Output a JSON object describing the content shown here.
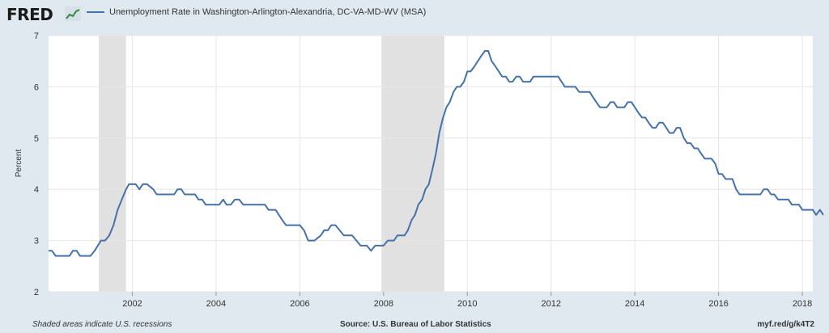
{
  "header": {
    "logo_text": "FRED",
    "logo_icon": "trend-line-icon",
    "legend_label": "Unemployment Rate in Washington-Arlington-Alexandria, DC-VA-MD-WV (MSA)"
  },
  "footer": {
    "note": "Shaded areas indicate U.S. recessions",
    "source": "Source: U.S. Bureau of Labor Statistics",
    "link": "myf.red/g/k4T2"
  },
  "colors": {
    "line": "#4572a7",
    "recession": "#e1e1e1",
    "grid": "#e6e6e6",
    "background": "#e1e9f0",
    "plot": "#ffffff"
  },
  "chart_data": {
    "type": "line",
    "title": "",
    "xlabel": "",
    "ylabel": "Percent",
    "ylim": [
      2,
      7
    ],
    "xlim": [
      2000.0,
      2018.25
    ],
    "grid": true,
    "legend_position": "top-left",
    "yticks": [
      2,
      3,
      4,
      5,
      6,
      7
    ],
    "xticks": [
      2002,
      2004,
      2006,
      2008,
      2010,
      2012,
      2014,
      2016,
      2018
    ],
    "recessions": [
      [
        2001.2,
        2001.85
      ],
      [
        2007.95,
        2009.45
      ]
    ],
    "series": [
      {
        "name": "Unemployment Rate in Washington-Arlington-Alexandria, DC-VA-MD-WV (MSA)",
        "points": [
          [
            2000.0,
            2.8
          ],
          [
            2000.08,
            2.8
          ],
          [
            2000.17,
            2.7
          ],
          [
            2000.5,
            2.7
          ],
          [
            2000.58,
            2.8
          ],
          [
            2000.67,
            2.8
          ],
          [
            2000.75,
            2.7
          ],
          [
            2001.0,
            2.7
          ],
          [
            2001.1,
            2.8
          ],
          [
            2001.25,
            3.0
          ],
          [
            2001.35,
            3.0
          ],
          [
            2001.45,
            3.1
          ],
          [
            2001.55,
            3.3
          ],
          [
            2001.65,
            3.6
          ],
          [
            2001.75,
            3.8
          ],
          [
            2001.85,
            4.0
          ],
          [
            2001.92,
            4.1
          ],
          [
            2002.08,
            4.1
          ],
          [
            2002.17,
            4.0
          ],
          [
            2002.25,
            4.1
          ],
          [
            2002.35,
            4.1
          ],
          [
            2002.5,
            4.0
          ],
          [
            2002.58,
            3.9
          ],
          [
            2003.0,
            3.9
          ],
          [
            2003.08,
            4.0
          ],
          [
            2003.17,
            4.0
          ],
          [
            2003.25,
            3.9
          ],
          [
            2003.5,
            3.9
          ],
          [
            2003.58,
            3.8
          ],
          [
            2003.67,
            3.8
          ],
          [
            2003.75,
            3.7
          ],
          [
            2004.08,
            3.7
          ],
          [
            2004.17,
            3.8
          ],
          [
            2004.25,
            3.7
          ],
          [
            2004.35,
            3.7
          ],
          [
            2004.45,
            3.8
          ],
          [
            2004.55,
            3.8
          ],
          [
            2004.65,
            3.7
          ],
          [
            2005.17,
            3.7
          ],
          [
            2005.25,
            3.6
          ],
          [
            2005.42,
            3.6
          ],
          [
            2005.58,
            3.4
          ],
          [
            2005.67,
            3.3
          ],
          [
            2006.0,
            3.3
          ],
          [
            2006.1,
            3.2
          ],
          [
            2006.2,
            3.0
          ],
          [
            2006.35,
            3.0
          ],
          [
            2006.5,
            3.1
          ],
          [
            2006.58,
            3.2
          ],
          [
            2006.67,
            3.2
          ],
          [
            2006.75,
            3.3
          ],
          [
            2006.85,
            3.3
          ],
          [
            2006.95,
            3.2
          ],
          [
            2007.05,
            3.1
          ],
          [
            2007.25,
            3.1
          ],
          [
            2007.35,
            3.0
          ],
          [
            2007.45,
            2.9
          ],
          [
            2007.6,
            2.9
          ],
          [
            2007.7,
            2.8
          ],
          [
            2007.8,
            2.9
          ],
          [
            2008.0,
            2.9
          ],
          [
            2008.1,
            3.0
          ],
          [
            2008.25,
            3.0
          ],
          [
            2008.33,
            3.1
          ],
          [
            2008.5,
            3.1
          ],
          [
            2008.58,
            3.2
          ],
          [
            2008.67,
            3.4
          ],
          [
            2008.75,
            3.5
          ],
          [
            2008.83,
            3.7
          ],
          [
            2008.92,
            3.8
          ],
          [
            2009.0,
            4.0
          ],
          [
            2009.08,
            4.1
          ],
          [
            2009.17,
            4.4
          ],
          [
            2009.25,
            4.7
          ],
          [
            2009.33,
            5.1
          ],
          [
            2009.42,
            5.4
          ],
          [
            2009.5,
            5.6
          ],
          [
            2009.58,
            5.7
          ],
          [
            2009.67,
            5.9
          ],
          [
            2009.75,
            6.0
          ],
          [
            2009.83,
            6.0
          ],
          [
            2009.92,
            6.1
          ],
          [
            2010.0,
            6.3
          ],
          [
            2010.08,
            6.3
          ],
          [
            2010.17,
            6.4
          ],
          [
            2010.25,
            6.5
          ],
          [
            2010.33,
            6.6
          ],
          [
            2010.42,
            6.7
          ],
          [
            2010.5,
            6.7
          ],
          [
            2010.58,
            6.5
          ],
          [
            2010.67,
            6.4
          ],
          [
            2010.75,
            6.3
          ],
          [
            2010.83,
            6.2
          ],
          [
            2010.92,
            6.2
          ],
          [
            2011.0,
            6.1
          ],
          [
            2011.08,
            6.1
          ],
          [
            2011.17,
            6.2
          ],
          [
            2011.25,
            6.2
          ],
          [
            2011.33,
            6.1
          ],
          [
            2011.5,
            6.1
          ],
          [
            2011.58,
            6.2
          ],
          [
            2012.17,
            6.2
          ],
          [
            2012.33,
            6.0
          ],
          [
            2012.58,
            6.0
          ],
          [
            2012.67,
            5.9
          ],
          [
            2012.92,
            5.9
          ],
          [
            2013.0,
            5.8
          ],
          [
            2013.08,
            5.7
          ],
          [
            2013.17,
            5.6
          ],
          [
            2013.33,
            5.6
          ],
          [
            2013.42,
            5.7
          ],
          [
            2013.5,
            5.7
          ],
          [
            2013.58,
            5.6
          ],
          [
            2013.75,
            5.6
          ],
          [
            2013.83,
            5.7
          ],
          [
            2013.92,
            5.7
          ],
          [
            2014.0,
            5.6
          ],
          [
            2014.08,
            5.5
          ],
          [
            2014.17,
            5.4
          ],
          [
            2014.25,
            5.4
          ],
          [
            2014.33,
            5.3
          ],
          [
            2014.42,
            5.2
          ],
          [
            2014.5,
            5.2
          ],
          [
            2014.58,
            5.3
          ],
          [
            2014.67,
            5.3
          ],
          [
            2014.75,
            5.2
          ],
          [
            2014.83,
            5.1
          ],
          [
            2014.92,
            5.1
          ],
          [
            2015.0,
            5.2
          ],
          [
            2015.08,
            5.2
          ],
          [
            2015.17,
            5.0
          ],
          [
            2015.25,
            4.9
          ],
          [
            2015.33,
            4.9
          ],
          [
            2015.42,
            4.8
          ],
          [
            2015.5,
            4.8
          ],
          [
            2015.58,
            4.7
          ],
          [
            2015.67,
            4.6
          ],
          [
            2015.83,
            4.6
          ],
          [
            2015.92,
            4.5
          ],
          [
            2016.0,
            4.3
          ],
          [
            2016.08,
            4.3
          ],
          [
            2016.17,
            4.2
          ],
          [
            2016.33,
            4.2
          ],
          [
            2016.42,
            4.0
          ],
          [
            2016.5,
            3.9
          ],
          [
            2017.0,
            3.9
          ],
          [
            2017.08,
            4.0
          ],
          [
            2017.17,
            4.0
          ],
          [
            2017.25,
            3.9
          ],
          [
            2017.33,
            3.9
          ],
          [
            2017.42,
            3.8
          ],
          [
            2017.67,
            3.8
          ],
          [
            2017.75,
            3.7
          ],
          [
            2017.92,
            3.7
          ],
          [
            2018.0,
            3.6
          ],
          [
            2018.25,
            3.6
          ],
          [
            2018.33,
            3.5
          ],
          [
            2018.42,
            3.6
          ],
          [
            2018.5,
            3.5
          ]
        ]
      }
    ]
  }
}
